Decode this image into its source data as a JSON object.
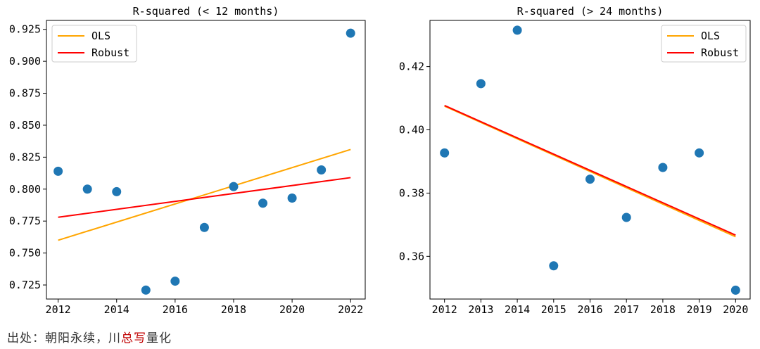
{
  "chart_data": [
    {
      "type": "scatter",
      "title": "R-squared (< 12 months)",
      "xlabel": "",
      "ylabel": "",
      "xlim": [
        2011.6,
        2022.5
      ],
      "ylim": [
        0.714,
        0.932
      ],
      "xticks": [
        2012,
        2014,
        2016,
        2018,
        2020,
        2022
      ],
      "yticks": [
        0.725,
        0.75,
        0.775,
        0.8,
        0.825,
        0.85,
        0.875,
        0.9,
        0.925
      ],
      "ytick_labels": [
        "0.725",
        "0.750",
        "0.775",
        "0.800",
        "0.825",
        "0.850",
        "0.875",
        "0.900",
        "0.925"
      ],
      "points": {
        "x": [
          2012,
          2013,
          2014,
          2015,
          2016,
          2017,
          2018,
          2019,
          2020,
          2021,
          2022
        ],
        "y": [
          0.814,
          0.8,
          0.798,
          0.721,
          0.728,
          0.77,
          0.802,
          0.789,
          0.793,
          0.815,
          0.922
        ],
        "color": "#1f77b4"
      },
      "lines": [
        {
          "name": "OLS",
          "color": "#FFA500",
          "x": [
            2012,
            2022
          ],
          "y": [
            0.76,
            0.831
          ]
        },
        {
          "name": "Robust",
          "color": "#FF0000",
          "x": [
            2012,
            2022
          ],
          "y": [
            0.778,
            0.809
          ]
        }
      ],
      "legend": {
        "placement": "top-left",
        "entries": [
          "OLS",
          "Robust"
        ]
      }
    },
    {
      "type": "scatter",
      "title": "R-squared (> 24 months)",
      "xlabel": "",
      "ylabel": "",
      "xlim": [
        2011.6,
        2020.4
      ],
      "ylim": [
        0.3465,
        0.4346
      ],
      "xticks": [
        2012,
        2013,
        2014,
        2015,
        2016,
        2017,
        2018,
        2019,
        2020
      ],
      "yticks": [
        0.36,
        0.38,
        0.4,
        0.42
      ],
      "ytick_labels": [
        "0.36",
        "0.38",
        "0.40",
        "0.42"
      ],
      "points": {
        "x": [
          2012,
          2013,
          2014,
          2015,
          2016,
          2017,
          2018,
          2019,
          2020
        ],
        "y": [
          0.3927,
          0.4146,
          0.4315,
          0.357,
          0.3844,
          0.3723,
          0.3881,
          0.3927,
          0.3493
        ],
        "color": "#1f77b4"
      },
      "lines": [
        {
          "name": "OLS",
          "color": "#FFA500",
          "x": [
            2012,
            2020
          ],
          "y": [
            0.4075,
            0.3662
          ]
        },
        {
          "name": "Robust",
          "color": "#FF0000",
          "x": [
            2012,
            2020
          ],
          "y": [
            0.4077,
            0.3667
          ]
        }
      ],
      "legend": {
        "placement": "top-right",
        "entries": [
          "OLS",
          "Robust"
        ]
      }
    }
  ],
  "caption": {
    "prefix": "出处：朝阳永续，川",
    "highlight": "总写",
    "suffix": "量化"
  }
}
